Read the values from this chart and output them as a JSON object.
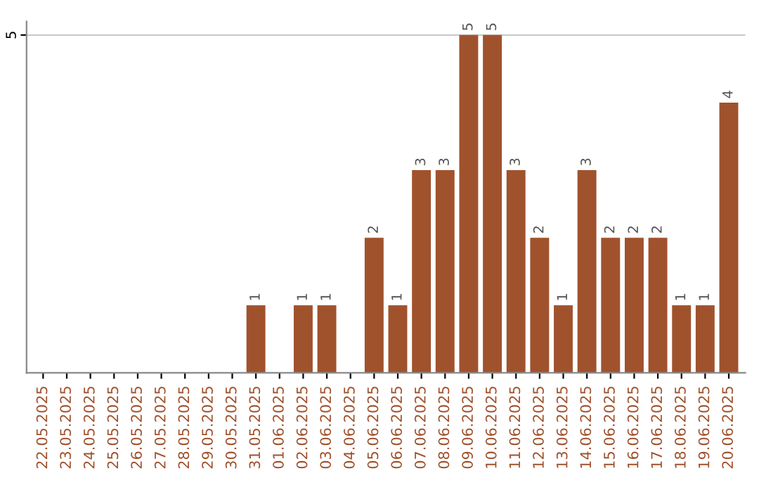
{
  "chart_data": {
    "type": "bar",
    "categories": [
      "22.05.2025",
      "23.05.2025",
      "24.05.2025",
      "25.05.2025",
      "26.05.2025",
      "27.05.2025",
      "28.05.2025",
      "29.05.2025",
      "30.05.2025",
      "31.05.2025",
      "01.06.2025",
      "02.06.2025",
      "03.06.2025",
      "04.06.2025",
      "05.06.2025",
      "06.06.2025",
      "07.06.2025",
      "08.06.2025",
      "09.06.2025",
      "10.06.2025",
      "11.06.2025",
      "12.06.2025",
      "13.06.2025",
      "14.06.2025",
      "15.06.2025",
      "16.06.2025",
      "17.06.2025",
      "18.06.2025",
      "19.06.2025",
      "20.06.2025"
    ],
    "values": [
      0,
      0,
      0,
      0,
      0,
      0,
      0,
      0,
      0,
      1,
      0,
      1,
      1,
      0,
      2,
      1,
      3,
      3,
      5,
      5,
      3,
      2,
      1,
      3,
      2,
      2,
      2,
      1,
      1,
      4
    ],
    "value_labels": [
      null,
      null,
      null,
      null,
      null,
      null,
      null,
      null,
      null,
      "1",
      null,
      "1",
      "1",
      null,
      "2",
      "1",
      "3",
      "3",
      "5",
      "5",
      "3",
      "2",
      "1",
      "3",
      "2",
      "2",
      "2",
      "1",
      "1",
      "4"
    ],
    "color": "#a0522d",
    "ylim": [
      0,
      5.2
    ],
    "yticks": [
      5
    ],
    "grid": "y"
  }
}
